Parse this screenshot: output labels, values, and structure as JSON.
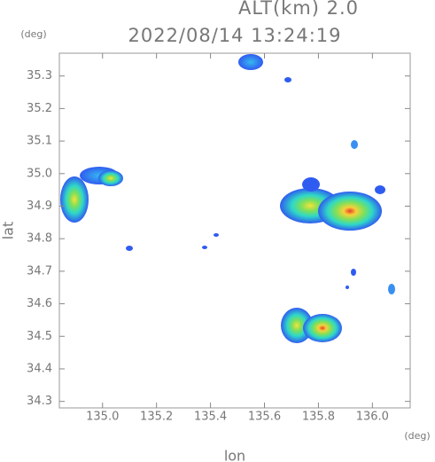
{
  "chart_data": {
    "type": "radar-map",
    "title": "2022/08/14 13:24:19",
    "subtitle": "ALT(km) 2.0",
    "x_label": "lon",
    "y_label": "lat",
    "x_unit": "(deg)",
    "y_unit": "(deg)",
    "xlim": [
      134.84,
      136.14
    ],
    "ylim": [
      34.28,
      35.37
    ],
    "xticks": [
      {
        "value": 135.0,
        "label": "135.0"
      },
      135.2,
      135.4,
      135.6,
      135.8,
      {
        "value": 136.0,
        "label": "136.0"
      }
    ],
    "yticks": [
      34.3,
      34.4,
      34.5,
      34.6,
      34.7,
      34.8,
      34.9,
      {
        "value": 35.0,
        "label": "35.0"
      },
      35.1,
      35.2,
      35.3
    ]
  }
}
